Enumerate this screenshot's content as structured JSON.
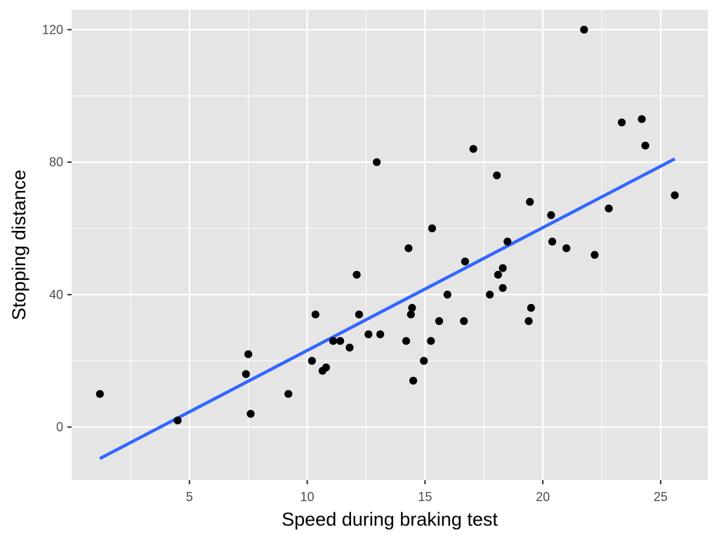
{
  "chart_data": {
    "type": "scatter",
    "title": "",
    "xlabel": "Speed during braking test",
    "ylabel": "Stopping distance",
    "xlim": [
      0.0,
      27.0
    ],
    "ylim": [
      -16.0,
      126.0
    ],
    "x_ticks": [
      5,
      10,
      15,
      20,
      25
    ],
    "x_minor_ticks": [
      2.5,
      7.5,
      12.5,
      17.5,
      22.5
    ],
    "y_ticks": [
      0,
      40,
      80,
      120
    ],
    "y_minor_ticks": [
      -20,
      20,
      60,
      100
    ],
    "grid": true,
    "legend": "none",
    "point_color": "#000000",
    "panel_color": "#e5e5e5",
    "fit": {
      "type": "linear",
      "color": "#3366ff",
      "x_range": [
        1.2,
        25.6
      ],
      "y_range": [
        -9.5,
        81.0
      ]
    },
    "points": [
      {
        "x": 1.2,
        "y": 10
      },
      {
        "x": 4.5,
        "y": 2
      },
      {
        "x": 7.4,
        "y": 16
      },
      {
        "x": 7.5,
        "y": 22
      },
      {
        "x": 7.6,
        "y": 4
      },
      {
        "x": 9.2,
        "y": 10
      },
      {
        "x": 10.2,
        "y": 20
      },
      {
        "x": 10.35,
        "y": 34
      },
      {
        "x": 10.65,
        "y": 17
      },
      {
        "x": 10.8,
        "y": 18
      },
      {
        "x": 11.1,
        "y": 26
      },
      {
        "x": 11.4,
        "y": 26
      },
      {
        "x": 11.8,
        "y": 24
      },
      {
        "x": 12.1,
        "y": 46
      },
      {
        "x": 12.2,
        "y": 34
      },
      {
        "x": 12.6,
        "y": 28
      },
      {
        "x": 12.95,
        "y": 80
      },
      {
        "x": 13.1,
        "y": 28
      },
      {
        "x": 14.2,
        "y": 26
      },
      {
        "x": 14.3,
        "y": 54
      },
      {
        "x": 14.4,
        "y": 34
      },
      {
        "x": 14.45,
        "y": 36
      },
      {
        "x": 14.5,
        "y": 14
      },
      {
        "x": 14.95,
        "y": 20
      },
      {
        "x": 15.25,
        "y": 26
      },
      {
        "x": 15.3,
        "y": 60
      },
      {
        "x": 15.6,
        "y": 32
      },
      {
        "x": 15.95,
        "y": 40
      },
      {
        "x": 16.65,
        "y": 32
      },
      {
        "x": 16.7,
        "y": 50
      },
      {
        "x": 17.05,
        "y": 84
      },
      {
        "x": 17.75,
        "y": 40
      },
      {
        "x": 18.05,
        "y": 76
      },
      {
        "x": 18.1,
        "y": 46
      },
      {
        "x": 18.3,
        "y": 42
      },
      {
        "x": 18.3,
        "y": 48
      },
      {
        "x": 18.5,
        "y": 56
      },
      {
        "x": 19.4,
        "y": 32
      },
      {
        "x": 19.45,
        "y": 68
      },
      {
        "x": 19.5,
        "y": 36
      },
      {
        "x": 20.35,
        "y": 64
      },
      {
        "x": 20.4,
        "y": 56
      },
      {
        "x": 21.0,
        "y": 54
      },
      {
        "x": 21.75,
        "y": 120
      },
      {
        "x": 22.2,
        "y": 52
      },
      {
        "x": 22.8,
        "y": 66
      },
      {
        "x": 23.35,
        "y": 92
      },
      {
        "x": 24.2,
        "y": 93
      },
      {
        "x": 24.35,
        "y": 85
      },
      {
        "x": 25.6,
        "y": 70
      }
    ]
  }
}
